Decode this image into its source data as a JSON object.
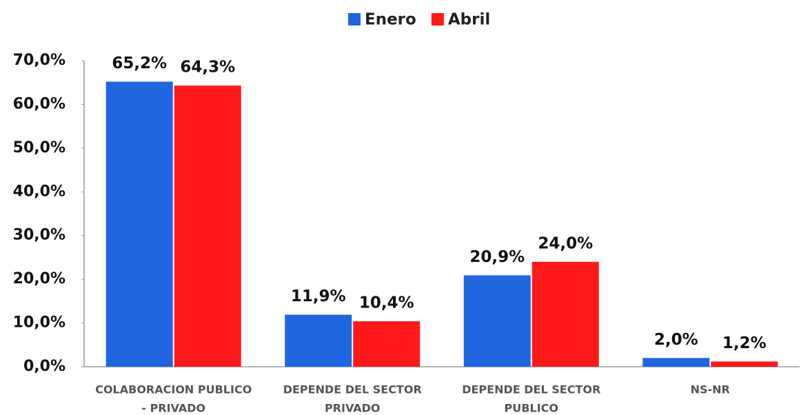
{
  "chart_data": {
    "type": "bar",
    "categories": [
      [
        "COLABORACION  PUBLICO",
        "- PRIVADO"
      ],
      [
        "DEPENDE DEL SECTOR",
        "PRIVADO"
      ],
      [
        "DEPENDE DEL SECTOR",
        "PUBLICO"
      ],
      [
        "NS-NR"
      ]
    ],
    "series": [
      {
        "name": "Enero",
        "color": "#1f66e0",
        "values": [
          65.2,
          11.9,
          20.9,
          2.0
        ],
        "value_labels": [
          "65,2%",
          "11,9%",
          "20,9%",
          "2,0%"
        ]
      },
      {
        "name": "Abril",
        "color": "#ff1a1a",
        "values": [
          64.3,
          10.4,
          24.0,
          1.2
        ],
        "value_labels": [
          "64,3%",
          "10,4%",
          "24,0%",
          "1,2%"
        ]
      }
    ],
    "ylim": [
      0,
      70
    ],
    "yticks": [
      {
        "value": 0,
        "label": "0,0%"
      },
      {
        "value": 10,
        "label": "10,0%"
      },
      {
        "value": 20,
        "label": "20,0%"
      },
      {
        "value": 30,
        "label": "30,0%"
      },
      {
        "value": 40,
        "label": "40,0%"
      },
      {
        "value": 50,
        "label": "50,0%"
      },
      {
        "value": 60,
        "label": "60,0%"
      },
      {
        "value": 70,
        "label": "70,0%"
      }
    ],
    "legend": "top",
    "grid": false
  }
}
